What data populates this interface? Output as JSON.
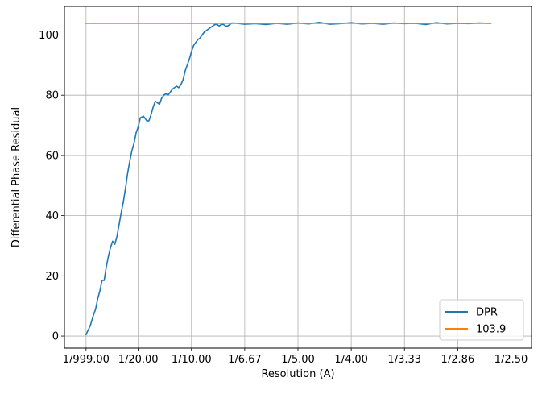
{
  "chart_data": {
    "type": "line",
    "title": "",
    "xlabel": "Resolution (A)",
    "ylabel": "Differential Phase Residual",
    "xlim": [
      -0.0193,
      0.4193
    ],
    "ylim": [
      -4,
      109.5
    ],
    "x_tick_values": [
      0.001,
      0.05,
      0.1,
      0.15,
      0.2,
      0.25,
      0.3,
      0.35,
      0.4
    ],
    "x_tick_labels": [
      "1/999.00",
      "1/20.00",
      "1/10.00",
      "1/6.67",
      "1/5.00",
      "1/4.00",
      "1/3.33",
      "1/2.86",
      "1/2.50"
    ],
    "y_ticks": [
      0,
      20,
      40,
      60,
      80,
      100
    ],
    "grid": true,
    "legend_position": "lower right",
    "colors": {
      "DPR": "#1f77b4",
      "103.9": "#ff7f0e"
    },
    "series": [
      {
        "name": "DPR",
        "x": [
          0.001,
          0.003,
          0.005,
          0.008,
          0.01,
          0.012,
          0.014,
          0.016,
          0.018,
          0.02,
          0.022,
          0.024,
          0.026,
          0.028,
          0.03,
          0.032,
          0.034,
          0.036,
          0.038,
          0.04,
          0.042,
          0.044,
          0.046,
          0.048,
          0.05,
          0.052,
          0.055,
          0.058,
          0.06,
          0.062,
          0.064,
          0.066,
          0.068,
          0.07,
          0.072,
          0.074,
          0.076,
          0.078,
          0.08,
          0.082,
          0.084,
          0.086,
          0.088,
          0.09,
          0.092,
          0.094,
          0.096,
          0.098,
          0.1,
          0.102,
          0.104,
          0.106,
          0.108,
          0.11,
          0.112,
          0.114,
          0.116,
          0.118,
          0.12,
          0.122,
          0.124,
          0.126,
          0.128,
          0.13,
          0.132,
          0.134,
          0.136,
          0.138,
          0.14,
          0.15,
          0.16,
          0.17,
          0.18,
          0.19,
          0.2,
          0.21,
          0.22,
          0.23,
          0.24,
          0.25,
          0.26,
          0.27,
          0.28,
          0.29,
          0.3,
          0.31,
          0.32,
          0.33,
          0.34,
          0.35,
          0.36,
          0.37,
          0.38,
          0.381
        ],
        "y": [
          0.5,
          2,
          3.5,
          7,
          9,
          12.5,
          15,
          18.5,
          18.5,
          23,
          26.5,
          29.5,
          31.5,
          30.5,
          33,
          37,
          41,
          44.5,
          49,
          54,
          58,
          61.5,
          64,
          67.5,
          69.5,
          72.5,
          73,
          71.5,
          71.5,
          73.5,
          76,
          78,
          77.5,
          77,
          79,
          80,
          80.5,
          80,
          81,
          82,
          82.5,
          83,
          82.5,
          83.5,
          85,
          88,
          90,
          92,
          94.5,
          96.5,
          97.5,
          98.5,
          99,
          100,
          101,
          101.5,
          102,
          102.5,
          103,
          103.5,
          103.5,
          103,
          103.5,
          103.5,
          103,
          103,
          103.5,
          104,
          104,
          103.6,
          103.8,
          103.5,
          103.9,
          103.6,
          104,
          103.7,
          104.2,
          103.6,
          103.8,
          104.1,
          103.7,
          103.9,
          103.6,
          104,
          103.8,
          103.9,
          103.5,
          104.1,
          103.7,
          103.9,
          103.8,
          104,
          103.9,
          103.9
        ]
      },
      {
        "name": "103.9",
        "x": [
          0.001,
          0.381
        ],
        "y": [
          103.9,
          103.9
        ]
      }
    ]
  }
}
